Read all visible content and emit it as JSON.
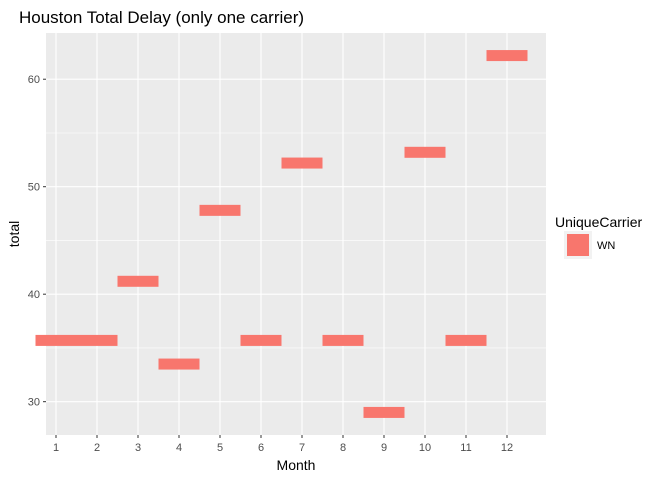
{
  "chart_data": {
    "type": "bar",
    "title": "Houston Total Delay (only one carrier)",
    "xlabel": "Month",
    "ylabel": "total",
    "categories": [
      "1",
      "2",
      "3",
      "4",
      "5",
      "6",
      "7",
      "8",
      "9",
      "10",
      "11",
      "12"
    ],
    "series": [
      {
        "name": "WN",
        "color": "#F8766D",
        "values": [
          35.7,
          35.7,
          41.2,
          33.5,
          47.8,
          35.7,
          52.2,
          35.7,
          29.0,
          53.2,
          35.7,
          62.2
        ]
      }
    ],
    "ylim": [
      26.9,
      64.3
    ],
    "yticks": [
      30,
      40,
      50,
      60
    ],
    "grid": true,
    "legend": {
      "title": "UniqueCarrier",
      "position": "right"
    },
    "background": "#EBEBEB"
  }
}
